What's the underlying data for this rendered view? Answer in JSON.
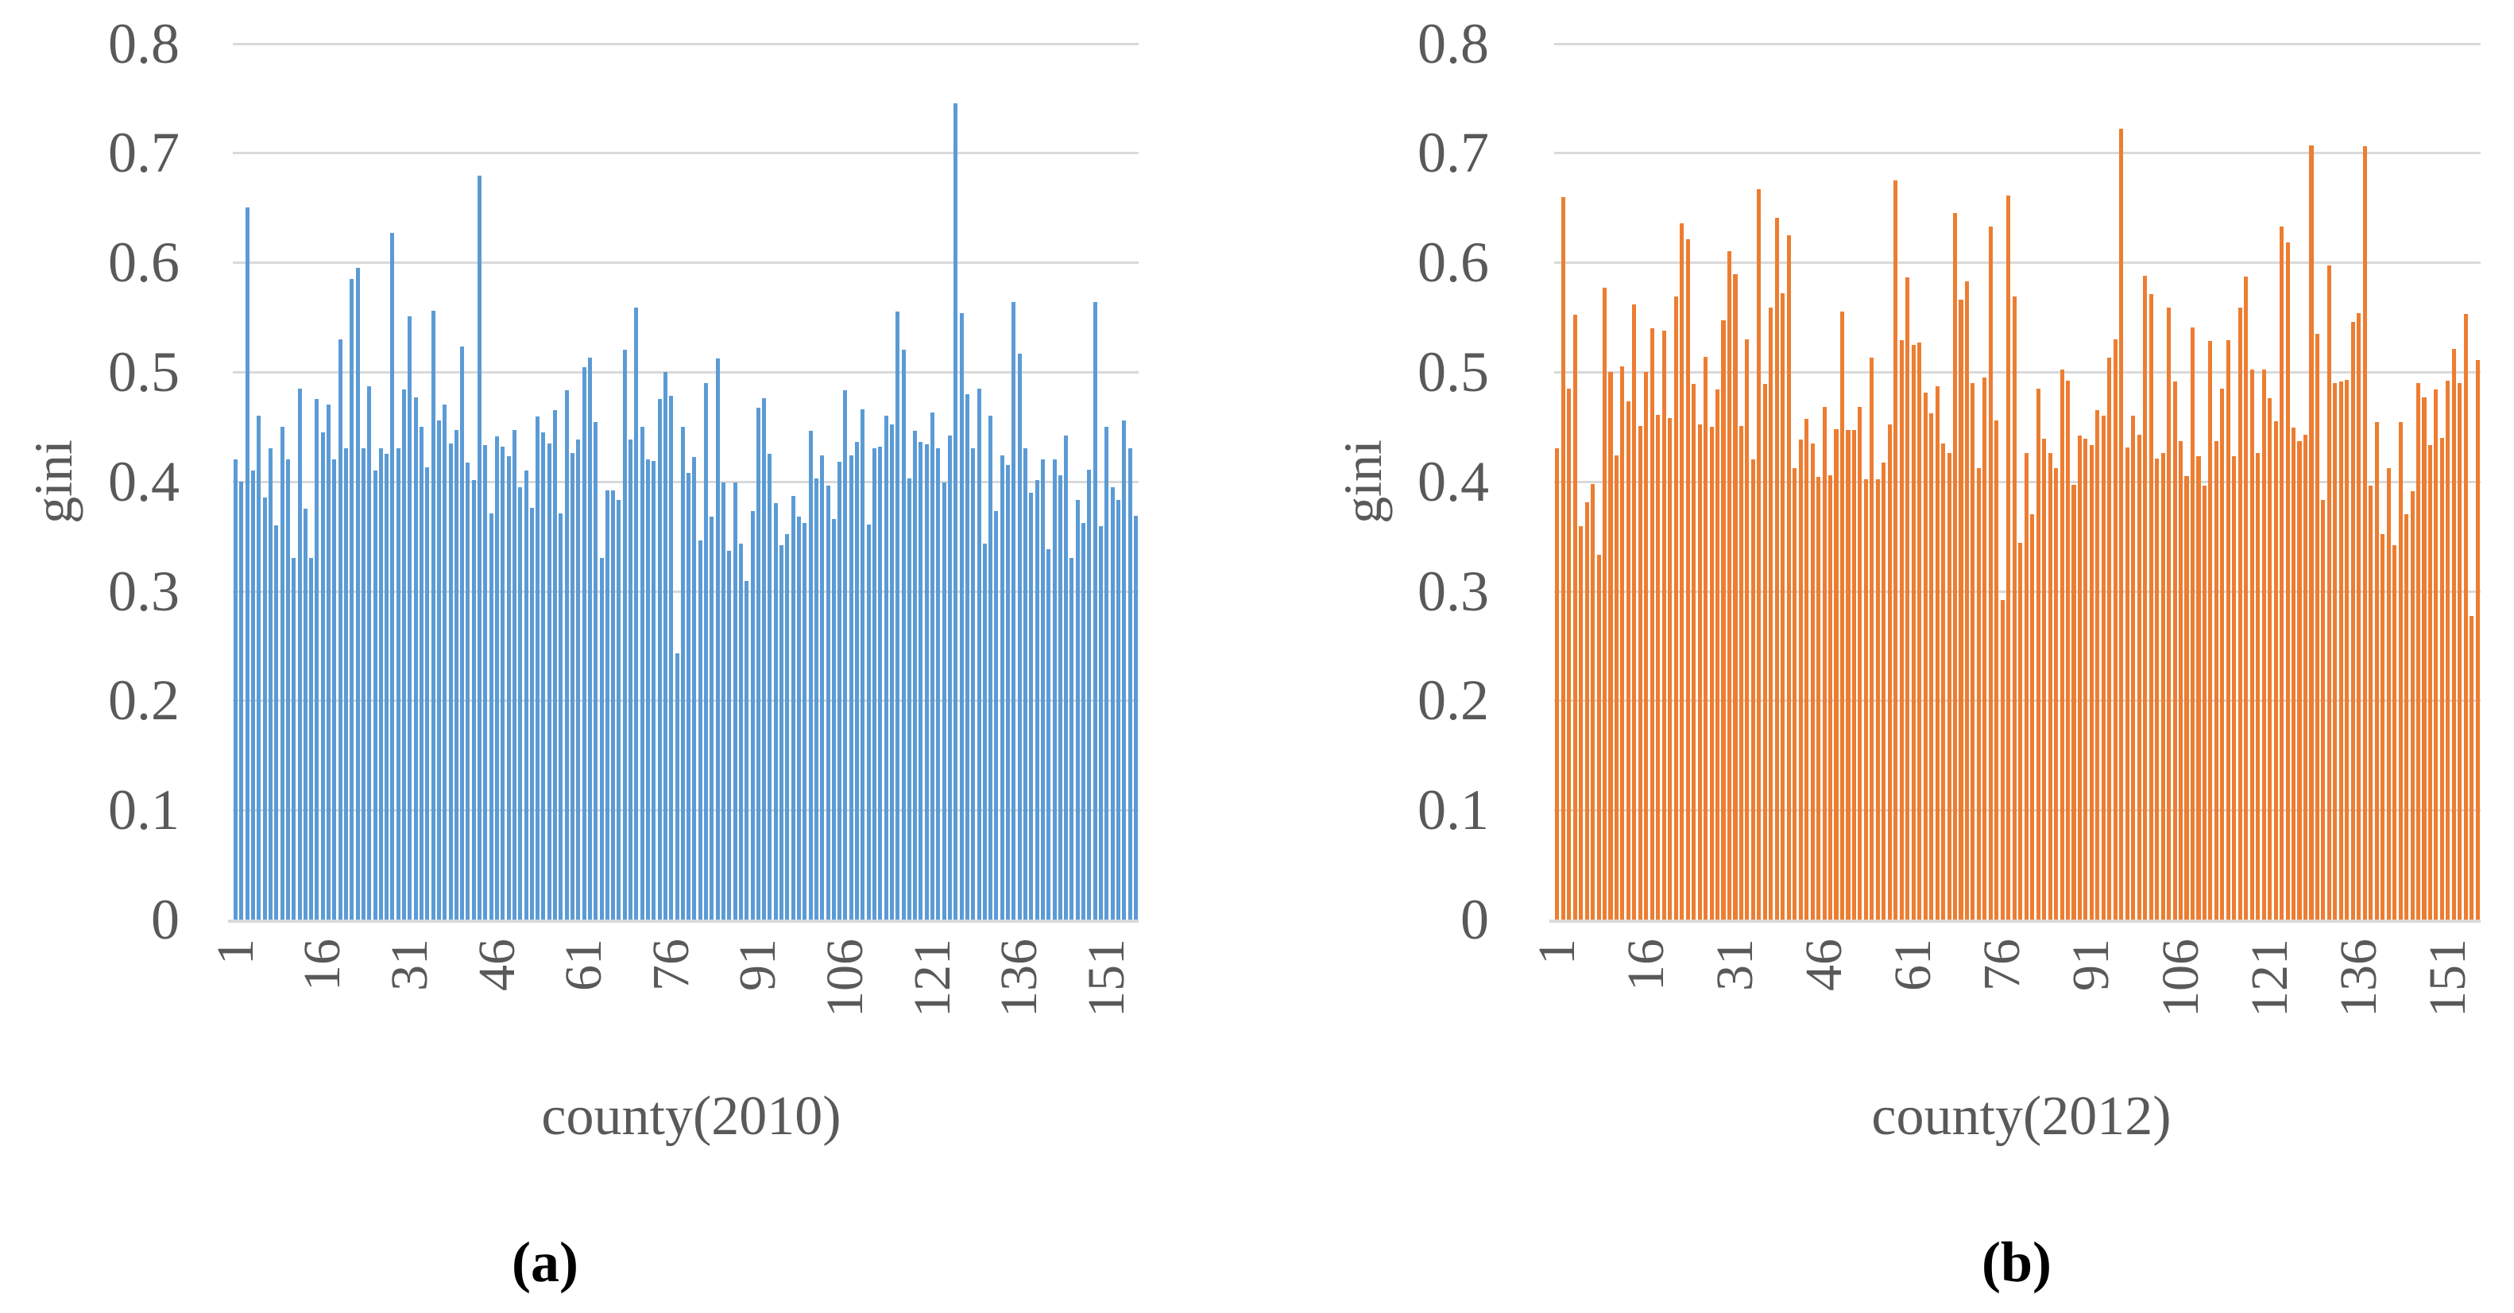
{
  "figure": {
    "background": "#ffffff",
    "grid_color": "#d9d9d9",
    "axis_line_color": "#d9d9d9",
    "tick_text_color": "#595959",
    "caption_color": "#000000"
  },
  "chart_data": [
    {
      "type": "bar",
      "title": "",
      "caption": "(a)",
      "xlabel": "county(2010)",
      "ylabel": "gini",
      "bar_color": "#5b9bd5",
      "ylim": [
        0,
        0.8
      ],
      "grid": true,
      "legend": "none",
      "y_ticks": [
        "0",
        "0.1",
        "0.2",
        "0.3",
        "0.4",
        "0.5",
        "0.6",
        "0.7",
        "0.8"
      ],
      "x_tick_labels": [
        "1",
        "16",
        "31",
        "46",
        "61",
        "76",
        "91",
        "106",
        "121",
        "136",
        "151"
      ],
      "x_tick_bars": [
        1,
        16,
        31,
        46,
        61,
        76,
        91,
        106,
        121,
        136,
        151
      ],
      "values": [
        0.42,
        0.4,
        0.65,
        0.41,
        0.46,
        0.385,
        0.43,
        0.36,
        0.45,
        0.42,
        0.33,
        0.485,
        0.375,
        0.33,
        0.475,
        0.445,
        0.47,
        0.42,
        0.53,
        0.43,
        0.585,
        0.595,
        0.43,
        0.487,
        0.41,
        0.43,
        0.425,
        0.627,
        0.43,
        0.484,
        0.551,
        0.477,
        0.45,
        0.413,
        0.556,
        0.456,
        0.47,
        0.435,
        0.447,
        0.523,
        0.417,
        0.401,
        0.679,
        0.433,
        0.371,
        0.441,
        0.432,
        0.423,
        0.447,
        0.395,
        0.41,
        0.376,
        0.459,
        0.445,
        0.435,
        0.465,
        0.371,
        0.483,
        0.426,
        0.438,
        0.504,
        0.513,
        0.454,
        0.33,
        0.392,
        0.392,
        0.383,
        0.52,
        0.438,
        0.559,
        0.45,
        0.42,
        0.419,
        0.475,
        0.5,
        0.478,
        0.243,
        0.45,
        0.408,
        0.422,
        0.346,
        0.49,
        0.368,
        0.512,
        0.399,
        0.337,
        0.399,
        0.343,
        0.309,
        0.373,
        0.467,
        0.476,
        0.425,
        0.38,
        0.342,
        0.352,
        0.387,
        0.368,
        0.362,
        0.446,
        0.403,
        0.424,
        0.396,
        0.366,
        0.418,
        0.483,
        0.424,
        0.436,
        0.466,
        0.361,
        0.43,
        0.432,
        0.46,
        0.452,
        0.555,
        0.52,
        0.403,
        0.446,
        0.436,
        0.434,
        0.463,
        0.43,
        0.399,
        0.442,
        0.745,
        0.554,
        0.48,
        0.43,
        0.485,
        0.343,
        0.46,
        0.373,
        0.424,
        0.415,
        0.564,
        0.517,
        0.43,
        0.39,
        0.401,
        0.42,
        0.338,
        0.42,
        0.406,
        0.442,
        0.33,
        0.383,
        0.362,
        0.411,
        0.564,
        0.359,
        0.45,
        0.395,
        0.383,
        0.456,
        0.43,
        0.369
      ]
    },
    {
      "type": "bar",
      "title": "",
      "caption": "(b)",
      "xlabel": "county(2012)",
      "ylabel": "gini",
      "bar_color": "#ed7d31",
      "ylim": [
        0,
        0.8
      ],
      "grid": true,
      "legend": "none",
      "y_ticks": [
        "0",
        "0.1",
        "0.2",
        "0.3",
        "0.4",
        "0.5",
        "0.6",
        "0.7",
        "0.8"
      ],
      "x_tick_labels": [
        "1",
        "16",
        "31",
        "46",
        "61",
        "76",
        "91",
        "106",
        "121",
        "136",
        "151"
      ],
      "x_tick_bars": [
        1,
        16,
        31,
        46,
        61,
        76,
        91,
        106,
        121,
        136,
        151
      ],
      "values": [
        0.43,
        0.66,
        0.485,
        0.552,
        0.359,
        0.381,
        0.398,
        0.333,
        0.577,
        0.5,
        0.424,
        0.505,
        0.473,
        0.562,
        0.451,
        0.5,
        0.54,
        0.461,
        0.538,
        0.458,
        0.569,
        0.636,
        0.621,
        0.489,
        0.452,
        0.514,
        0.45,
        0.484,
        0.547,
        0.61,
        0.589,
        0.451,
        0.53,
        0.42,
        0.667,
        0.489,
        0.559,
        0.641,
        0.572,
        0.625,
        0.412,
        0.438,
        0.457,
        0.435,
        0.404,
        0.468,
        0.406,
        0.448,
        0.555,
        0.447,
        0.447,
        0.468,
        0.402,
        0.513,
        0.402,
        0.417,
        0.452,
        0.675,
        0.529,
        0.586,
        0.525,
        0.527,
        0.481,
        0.462,
        0.487,
        0.435,
        0.426,
        0.645,
        0.566,
        0.583,
        0.49,
        0.412,
        0.495,
        0.633,
        0.456,
        0.292,
        0.661,
        0.569,
        0.344,
        0.426,
        0.37,
        0.485,
        0.439,
        0.426,
        0.412,
        0.502,
        0.492,
        0.397,
        0.442,
        0.439,
        0.433,
        0.465,
        0.46,
        0.513,
        0.53,
        0.722,
        0.431,
        0.46,
        0.443,
        0.588,
        0.571,
        0.421,
        0.426,
        0.559,
        0.491,
        0.437,
        0.405,
        0.541,
        0.423,
        0.396,
        0.528,
        0.437,
        0.485,
        0.529,
        0.423,
        0.559,
        0.587,
        0.502,
        0.426,
        0.502,
        0.476,
        0.455,
        0.633,
        0.618,
        0.449,
        0.437,
        0.443,
        0.707,
        0.535,
        0.383,
        0.597,
        0.49,
        0.491,
        0.493,
        0.546,
        0.554,
        0.706,
        0.396,
        0.454,
        0.352,
        0.412,
        0.342,
        0.454,
        0.37,
        0.391,
        0.49,
        0.477,
        0.433,
        0.484,
        0.44,
        0.492,
        0.521,
        0.49,
        0.553,
        0.277,
        0.511
      ]
    }
  ]
}
